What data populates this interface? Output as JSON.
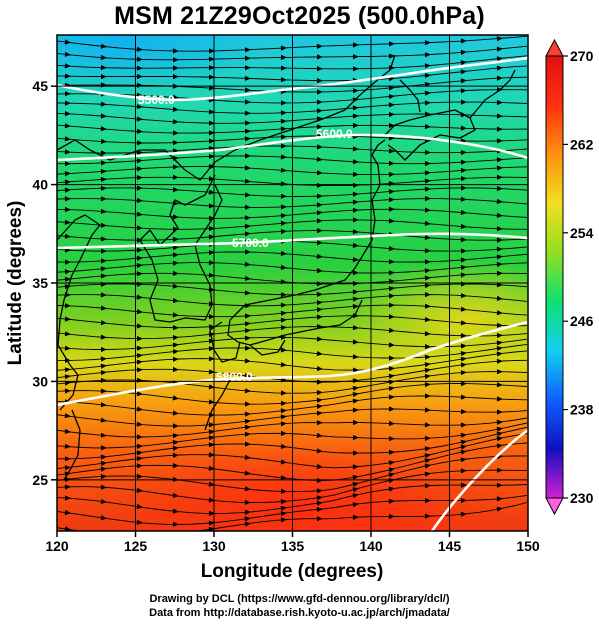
{
  "title": "MSM 21Z29Oct2025 (500.0hPa)",
  "credits": {
    "line1": "Drawing by DCL (https://www.gfd-dennou.org/library/dcl/)",
    "line2": "Data from http://database.rish.kyoto-u.ac.jp/arch/jmadata/"
  },
  "map": {
    "xlabel": "Longitude (degrees)",
    "ylabel": "Latitude  (degrees)",
    "lon_range": [
      120,
      150
    ],
    "lat_range": [
      22.4,
      47.6
    ],
    "lon_ticks": [
      "120",
      "125",
      "130",
      "135",
      "140",
      "145",
      "150"
    ],
    "lat_ticks": [
      "25",
      "30",
      "35",
      "40",
      "45"
    ],
    "grid": true,
    "contour_labels": [
      "5500.0",
      "5600.0",
      "5700.0",
      "5800.0"
    ],
    "colors": {
      "gridline": "#000000",
      "contour": "#ffffff",
      "coastline": "#000000"
    }
  },
  "colorbar": {
    "ticks": [
      "270",
      "262",
      "254",
      "246",
      "238",
      "230"
    ],
    "range": [
      230,
      270
    ],
    "stops": [
      "#d020d0",
      "#1010c0",
      "#1060ff",
      "#10d0f0",
      "#10e070",
      "#90e020",
      "#f0e020",
      "#ff9010",
      "#ff3010",
      "#e01010"
    ]
  }
}
